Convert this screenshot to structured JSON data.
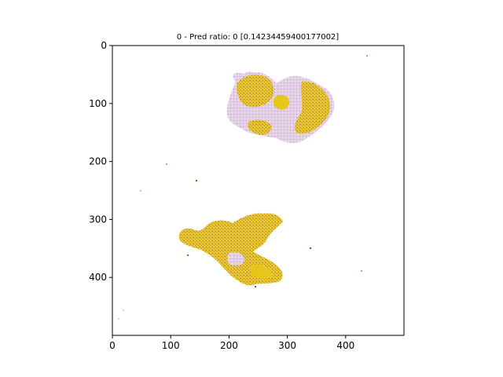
{
  "chart_data": {
    "type": "image",
    "title": "0 - Pred ratio: 0 [0.14234459400177002]",
    "xlabel": "",
    "ylabel": "",
    "xlim": [
      0,
      500
    ],
    "ylim": [
      500,
      0
    ],
    "x_ticks": [
      0,
      100,
      200,
      300,
      400
    ],
    "y_ticks": [
      0,
      100,
      200,
      300,
      400
    ],
    "grid": false,
    "legend": "none",
    "colors": {
      "tissue_yellow": "#e6c619",
      "tissue_dark_yellow": "#c9a20e",
      "tissue_pink": "#d9b8d8",
      "tissue_lavender": "#e6dcef",
      "tissue_red": "#b4304e"
    }
  }
}
